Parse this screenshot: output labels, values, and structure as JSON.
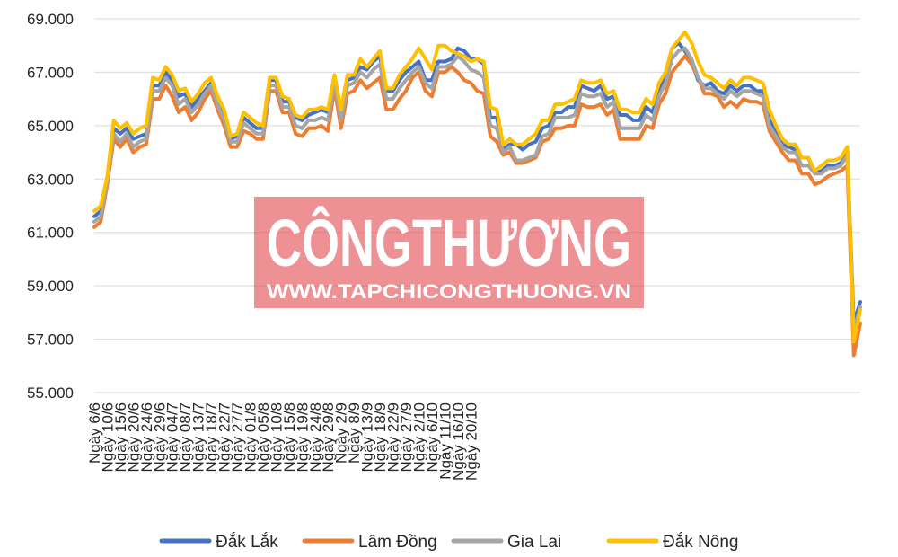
{
  "watermark": {
    "brand": "CÔNGTHƯƠNG",
    "url": "WWW.TAPCHICONGTHUONG.VN",
    "color": "#e2474f"
  },
  "chart_data": {
    "type": "line",
    "ylim": [
      55000,
      69000
    ],
    "y_ticks": [
      55000,
      57000,
      59000,
      61000,
      63000,
      65000,
      67000,
      69000
    ],
    "y_tick_labels": [
      "55.000",
      "57.000",
      "59.000",
      "61.000",
      "63.000",
      "65.000",
      "67.000",
      "69.000"
    ],
    "grid": true,
    "legend_position": "bottom",
    "x_tick_labels": [
      {
        "i": 0,
        "label": "Ngày 6/6"
      },
      {
        "i": 2,
        "label": "Ngày 10/6"
      },
      {
        "i": 4,
        "label": "Ngày 15/6"
      },
      {
        "i": 6,
        "label": "Ngày 20/6"
      },
      {
        "i": 8,
        "label": "Ngày 24/6"
      },
      {
        "i": 10,
        "label": "Ngày 29/6"
      },
      {
        "i": 12,
        "label": "Ngày 04/7"
      },
      {
        "i": 14,
        "label": "Ngày 08/7"
      },
      {
        "i": 16,
        "label": "Ngày 13/7"
      },
      {
        "i": 18,
        "label": "Ngày 18/7"
      },
      {
        "i": 20,
        "label": "Ngày 22/7"
      },
      {
        "i": 22,
        "label": "Ngày 27/7"
      },
      {
        "i": 24,
        "label": "Ngày 01/8"
      },
      {
        "i": 26,
        "label": "Ngày 05/8"
      },
      {
        "i": 28,
        "label": "Ngày 10/8"
      },
      {
        "i": 30,
        "label": "Ngày 15/8"
      },
      {
        "i": 32,
        "label": "Ngày 19/8"
      },
      {
        "i": 34,
        "label": "Ngày 24/8"
      },
      {
        "i": 36,
        "label": "Ngày 29/8"
      },
      {
        "i": 38,
        "label": "Ngày 2/9"
      },
      {
        "i": 40,
        "label": "Ngày 8/9"
      },
      {
        "i": 42,
        "label": "Ngày 13/9"
      },
      {
        "i": 44,
        "label": "Ngày 18/9"
      },
      {
        "i": 46,
        "label": "Ngày 22/9"
      },
      {
        "i": 48,
        "label": "Ngày 27/9"
      },
      {
        "i": 50,
        "label": "Ngày 2/10"
      },
      {
        "i": 52,
        "label": "Ngày 6/10"
      },
      {
        "i": 54,
        "label": "Ngày 11/10"
      },
      {
        "i": 56,
        "label": "Ngày 16/10"
      },
      {
        "i": 58,
        "label": "Ngày 20/10"
      }
    ],
    "series": [
      {
        "name": "Đắk Lắk",
        "color": "#4472c4",
        "values": [
          61600,
          61800,
          63000,
          64900,
          64700,
          64900,
          64500,
          64600,
          64700,
          66500,
          66500,
          67000,
          66700,
          66100,
          66200,
          65700,
          66000,
          66300,
          66600,
          65900,
          65400,
          64500,
          64600,
          65300,
          65100,
          64900,
          64900,
          66700,
          66700,
          65900,
          65900,
          65300,
          65200,
          65400,
          65500,
          65600,
          65500,
          66800,
          65400,
          66700,
          66800,
          67200,
          67100,
          67400,
          67600,
          66300,
          66300,
          66700,
          67000,
          67200,
          67400,
          66700,
          66700,
          67400,
          67400,
          67500,
          67900,
          67800,
          67500,
          67500,
          67300,
          65300,
          65300,
          64100,
          64300,
          64300,
          64100,
          64300,
          64400,
          64900,
          65000,
          65500,
          65500,
          65700,
          65700,
          66500,
          66400,
          66300,
          66500,
          66000,
          66100,
          65400,
          65400,
          65200,
          65200,
          65700,
          65500,
          66400,
          66800,
          67900,
          68100,
          67800,
          67400,
          66700,
          66500,
          66600,
          66300,
          66200,
          66500,
          66300,
          66500,
          66500,
          66300,
          66300,
          65200,
          64800,
          64300,
          64200,
          64100,
          63800,
          63800,
          63200,
          63300,
          63500,
          63500,
          63600,
          64000,
          57600,
          58400
        ]
      },
      {
        "name": "Lâm Đồng",
        "color": "#ed7d31",
        "values": [
          61200,
          61400,
          62800,
          64500,
          64200,
          64500,
          64000,
          64200,
          64300,
          66000,
          66000,
          66500,
          66100,
          65500,
          65700,
          65200,
          65500,
          66000,
          66300,
          65600,
          65000,
          64200,
          64200,
          64800,
          64700,
          64500,
          64500,
          66300,
          66300,
          65500,
          65500,
          64700,
          64600,
          64900,
          64900,
          65000,
          64800,
          66400,
          64900,
          66200,
          66300,
          66700,
          66400,
          66600,
          66800,
          65600,
          65600,
          66000,
          66300,
          66800,
          67000,
          66300,
          66100,
          67000,
          67000,
          67200,
          67000,
          66700,
          66600,
          66300,
          66200,
          64600,
          64400,
          63900,
          64000,
          63600,
          63600,
          63700,
          63800,
          64400,
          64500,
          64900,
          64900,
          65000,
          65000,
          65800,
          65700,
          65700,
          65800,
          65400,
          65600,
          64500,
          64500,
          64500,
          64500,
          65000,
          64900,
          65800,
          66200,
          67000,
          67300,
          67600,
          67300,
          66800,
          66200,
          66200,
          66100,
          65700,
          65900,
          65700,
          66000,
          65900,
          65900,
          65800,
          64800,
          64400,
          64000,
          63700,
          63700,
          63200,
          63200,
          62800,
          62900,
          63100,
          63200,
          63300,
          63500,
          56400,
          57600
        ]
      },
      {
        "name": "Gia Lai",
        "color": "#a5a5a5",
        "values": [
          61400,
          61600,
          62900,
          64700,
          64400,
          64700,
          64200,
          64400,
          64500,
          66300,
          66300,
          66800,
          66500,
          65800,
          66000,
          65500,
          65800,
          66200,
          66500,
          65800,
          65200,
          64400,
          64400,
          65100,
          64900,
          64700,
          64700,
          66500,
          66500,
          65700,
          65700,
          65000,
          64900,
          65200,
          65200,
          65300,
          65200,
          66600,
          65200,
          66500,
          66600,
          67000,
          66800,
          67100,
          67300,
          66000,
          66000,
          66400,
          66700,
          67000,
          67200,
          66600,
          66400,
          67200,
          67200,
          67300,
          67600,
          67400,
          67100,
          67000,
          66800,
          65000,
          64900,
          64000,
          64200,
          63700,
          63700,
          63800,
          63900,
          64600,
          64700,
          65300,
          65300,
          65300,
          65400,
          66200,
          66100,
          66100,
          66200,
          65700,
          65900,
          64900,
          64900,
          64900,
          64900,
          65400,
          65200,
          66100,
          66600,
          67500,
          67800,
          67900,
          67500,
          66800,
          66400,
          66400,
          66200,
          66000,
          66300,
          66100,
          66300,
          66300,
          66200,
          66100,
          65000,
          64600,
          64200,
          64000,
          64000,
          63500,
          63500,
          63200,
          63200,
          63400,
          63400,
          63500,
          63900,
          57300,
          58200
        ]
      },
      {
        "name": "Đắk Nông",
        "color": "#ffc000",
        "values": [
          61800,
          62000,
          63100,
          65200,
          64900,
          65100,
          64700,
          64900,
          65000,
          66800,
          66700,
          67200,
          66900,
          66300,
          66400,
          65900,
          66200,
          66600,
          66800,
          66100,
          65600,
          64600,
          64700,
          65500,
          65300,
          65100,
          65000,
          66800,
          66800,
          66100,
          66000,
          65400,
          65300,
          65600,
          65600,
          65700,
          65600,
          66900,
          65600,
          66900,
          66900,
          67500,
          67200,
          67500,
          67800,
          66400,
          66400,
          66900,
          67200,
          67500,
          67900,
          67500,
          67100,
          68000,
          68000,
          67800,
          67700,
          67600,
          67400,
          67500,
          67400,
          65700,
          65600,
          64300,
          64500,
          64300,
          64300,
          64500,
          64700,
          65200,
          65200,
          65800,
          65800,
          65900,
          66000,
          66700,
          66600,
          66600,
          66700,
          66200,
          66300,
          65600,
          65600,
          65500,
          65500,
          66000,
          65800,
          66600,
          67000,
          67900,
          68200,
          68500,
          68100,
          67400,
          66900,
          66800,
          66600,
          66400,
          66700,
          66500,
          66800,
          66800,
          66700,
          66600,
          65600,
          65000,
          64500,
          64300,
          64300,
          63800,
          63800,
          63300,
          63500,
          63700,
          63700,
          63800,
          64200,
          56900,
          58100
        ]
      }
    ]
  }
}
